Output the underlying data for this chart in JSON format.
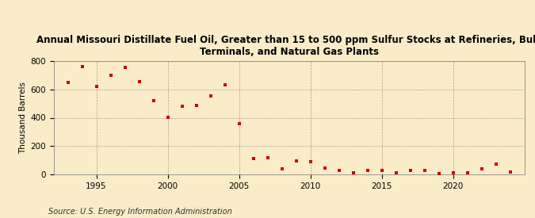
{
  "title_line1": "Annual Missouri Distillate Fuel Oil, Greater than 15 to 500 ppm Sulfur Stocks at Refineries, Bulk",
  "title_line2": "Terminals, and Natural Gas Plants",
  "ylabel": "Thousand Barrels",
  "source": "Source: U.S. Energy Information Administration",
  "background_color": "#faecc8",
  "marker_color": "#cc0000",
  "years": [
    1993,
    1994,
    1995,
    1996,
    1997,
    1998,
    1999,
    2000,
    2001,
    2002,
    2003,
    2004,
    2005,
    2006,
    2007,
    2008,
    2009,
    2010,
    2011,
    2012,
    2013,
    2014,
    2015,
    2016,
    2017,
    2018,
    2019,
    2020,
    2021,
    2022,
    2023,
    2024
  ],
  "values": [
    648,
    763,
    622,
    698,
    757,
    657,
    521,
    403,
    483,
    487,
    553,
    630,
    357,
    112,
    117,
    37,
    97,
    90,
    46,
    28,
    13,
    28,
    30,
    13,
    30,
    28,
    5,
    13,
    12,
    40,
    70,
    14
  ],
  "ylim": [
    0,
    800
  ],
  "yticks": [
    0,
    200,
    400,
    600,
    800
  ],
  "xticks": [
    1995,
    2000,
    2005,
    2010,
    2015,
    2020
  ],
  "xlim": [
    1992,
    2025
  ],
  "title_fontsize": 8.5,
  "label_fontsize": 7.5,
  "source_fontsize": 7,
  "tick_fontsize": 7.5
}
